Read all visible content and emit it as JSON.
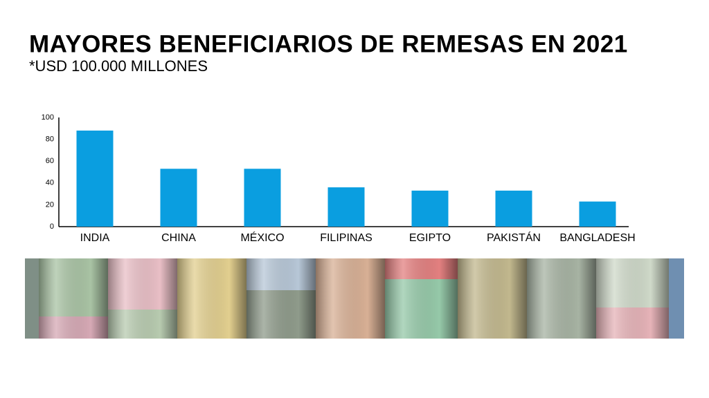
{
  "chart_data": {
    "type": "bar",
    "title": "MAYORES BENEFICIARIOS DE REMESAS EN 2021",
    "subtitle": "*USD 100.000 MILLONES",
    "categories": [
      "INDIA",
      "CHINA",
      "MÉXICO",
      "FILIPINAS",
      "EGIPTO",
      "PAKISTÁN",
      "BANGLADESH"
    ],
    "values": [
      88,
      53,
      53,
      36,
      33,
      33,
      23
    ],
    "color": "#0a9ee0",
    "ylim": [
      0,
      100
    ],
    "yticks": [
      0,
      20,
      40,
      60,
      80,
      100
    ],
    "grid": false
  }
}
